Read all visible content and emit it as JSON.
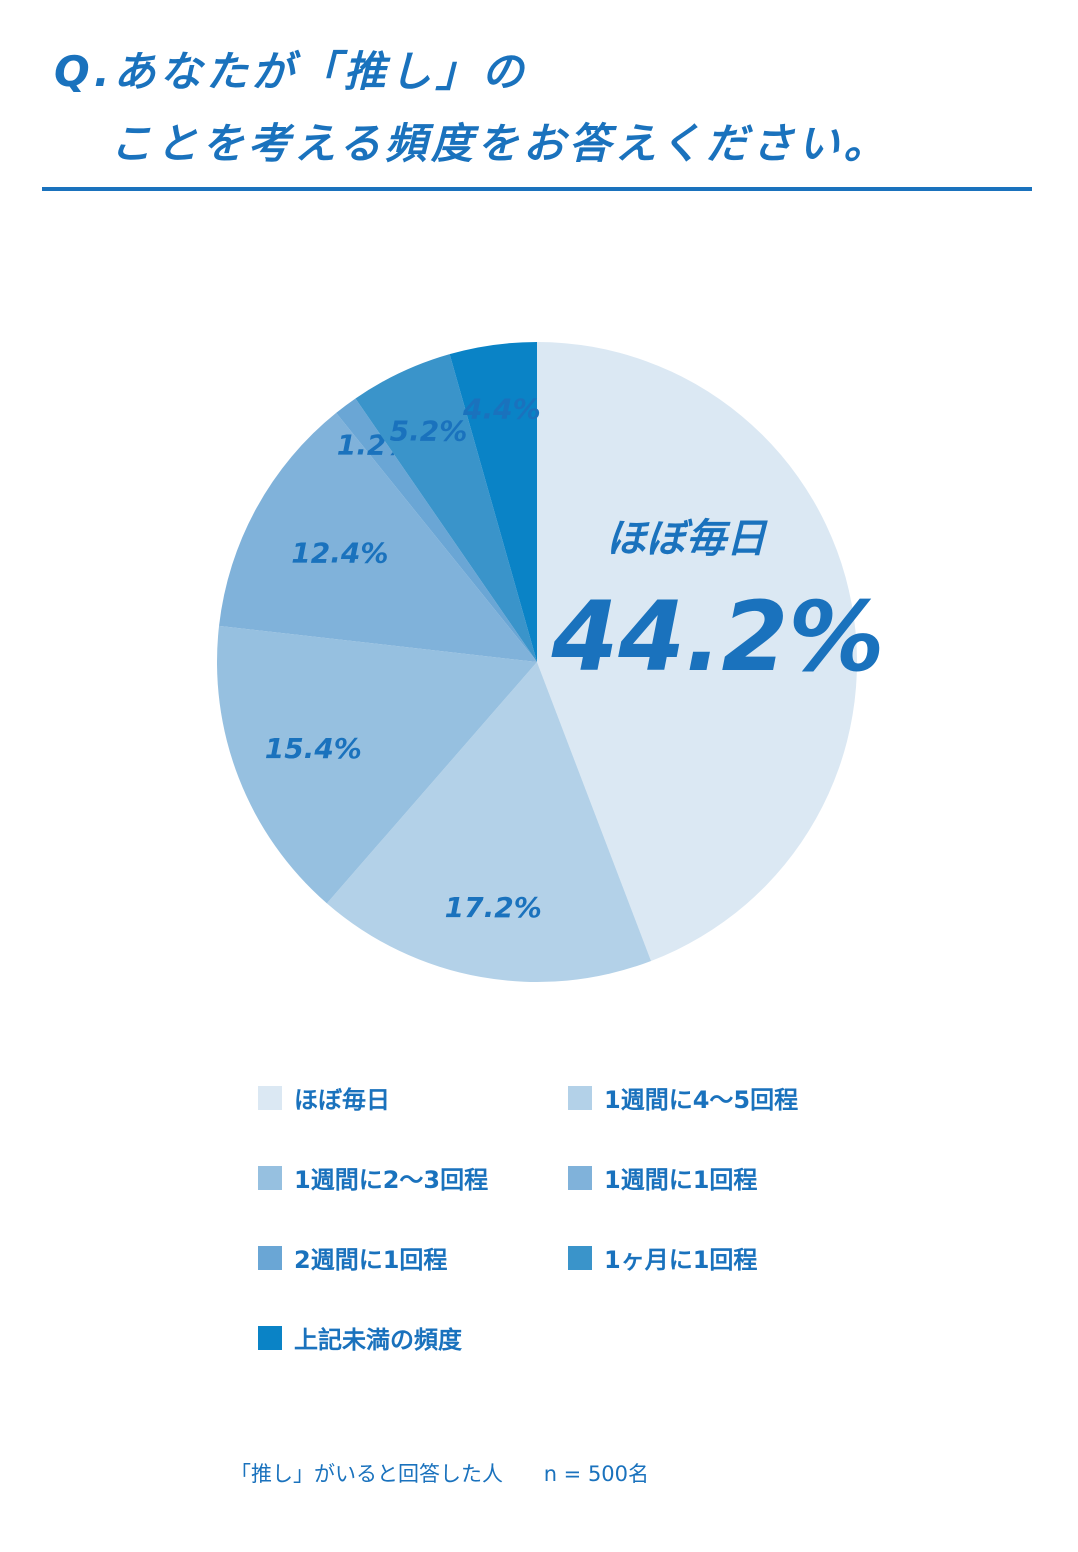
{
  "title": {
    "line1": "Q.あなたが「推し」の",
    "line2": "ことを考える頻度をお答えください。"
  },
  "chart_data": {
    "type": "pie",
    "categories": [
      "ほぼ毎日",
      "1週間に4～5回程",
      "1週間に2～3回程",
      "1週間に1回程",
      "2週間に1回程",
      "1ヶ月に1回程",
      "上記未満の頻度"
    ],
    "values": [
      44.2,
      17.2,
      15.4,
      12.4,
      1.2,
      5.2,
      4.4
    ],
    "value_labels": [
      "44.2%",
      "17.2%",
      "15.4%",
      "12.4%",
      "1.2%",
      "5.2%",
      "4.4%"
    ],
    "colors": [
      "#dbe8f3",
      "#b3d1e8",
      "#96c0e0",
      "#80b2da",
      "#6aa6d5",
      "#3a94ca",
      "#0a83c6"
    ],
    "highlight_label": "ほぼ毎日",
    "legend_position": "bottom"
  },
  "footnote": {
    "left": "「推し」がいると回答した人",
    "right": "n = 500名"
  }
}
